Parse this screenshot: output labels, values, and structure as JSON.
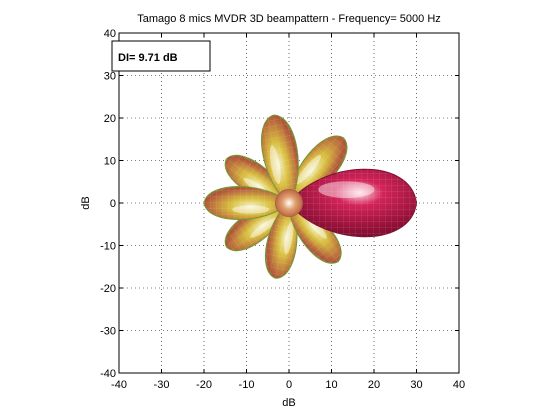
{
  "chart_data": {
    "type": "other",
    "title": "Tamago 8 mics  MVDR 3D beampattern - Frequency= 5000 Hz",
    "xlabel": "dB",
    "ylabel": "dB",
    "xlim": [
      -40,
      40
    ],
    "ylim": [
      -40,
      40
    ],
    "xticks": [
      -40,
      -30,
      -20,
      -10,
      0,
      10,
      20,
      30,
      40
    ],
    "yticks": [
      -40,
      -30,
      -20,
      -10,
      0,
      10,
      20,
      30,
      40
    ],
    "grid": true,
    "annotation": "DI= 9.71 dB",
    "lobes": [
      {
        "azimuth_deg": 0,
        "extent_db": 30
      },
      {
        "azimuth_deg": 50,
        "extent_db": 20
      },
      {
        "azimuth_deg": 100,
        "extent_db": 21
      },
      {
        "azimuth_deg": 145,
        "extent_db": 18
      },
      {
        "azimuth_deg": 180,
        "extent_db": 20
      },
      {
        "azimuth_deg": 215,
        "extent_db": 18
      },
      {
        "azimuth_deg": 260,
        "extent_db": 18
      },
      {
        "azimuth_deg": 310,
        "extent_db": 18
      }
    ],
    "colors": {
      "main_lobe": "#c0184a",
      "side_lobe": "#a8b630",
      "mesh": "#ffffff"
    }
  }
}
